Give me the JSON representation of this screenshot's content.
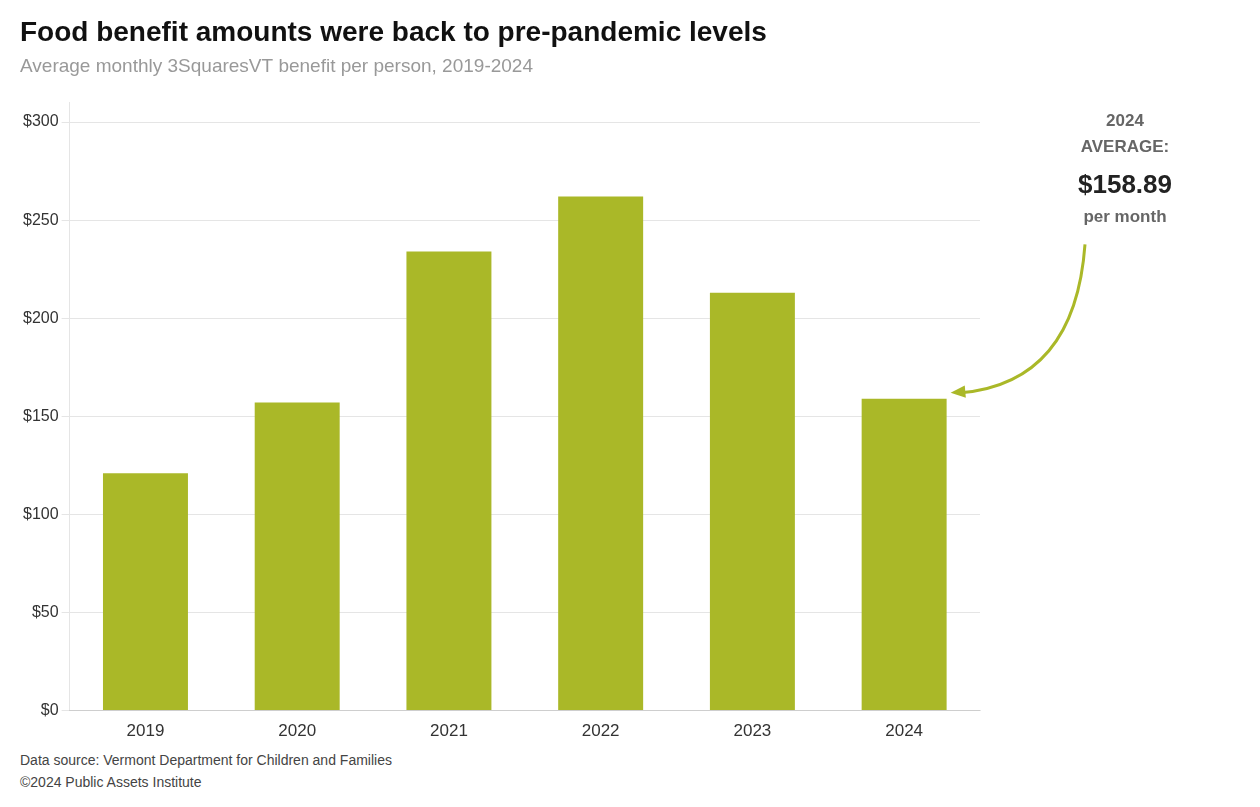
{
  "chart_data": {
    "type": "bar",
    "title": "Food benefit amounts were back to pre-pandemic levels",
    "subtitle": "Average monthly 3SquaresVT benefit per person, 2019-2024",
    "categories": [
      "2019",
      "2020",
      "2021",
      "2022",
      "2023",
      "2024"
    ],
    "values": [
      121.0,
      157.0,
      234.0,
      262.0,
      213.0,
      158.89
    ],
    "color": "#aab828",
    "ylim": [
      0,
      310
    ],
    "yticks": [
      {
        "value": 0,
        "label": "$0"
      },
      {
        "value": 50,
        "label": "$50"
      },
      {
        "value": 100,
        "label": "$100"
      },
      {
        "value": 150,
        "label": "$150"
      },
      {
        "value": 200,
        "label": "$200"
      },
      {
        "value": 250,
        "label": "$250"
      },
      {
        "value": 300,
        "label": "$300"
      }
    ],
    "grid": true,
    "annotations": [
      "2024",
      "AVERAGE:",
      "$158.89",
      "per month"
    ],
    "footnotes": [
      "Data source: Vermont Department for Children and Families",
      "©2024 Public Assets Institute"
    ]
  }
}
